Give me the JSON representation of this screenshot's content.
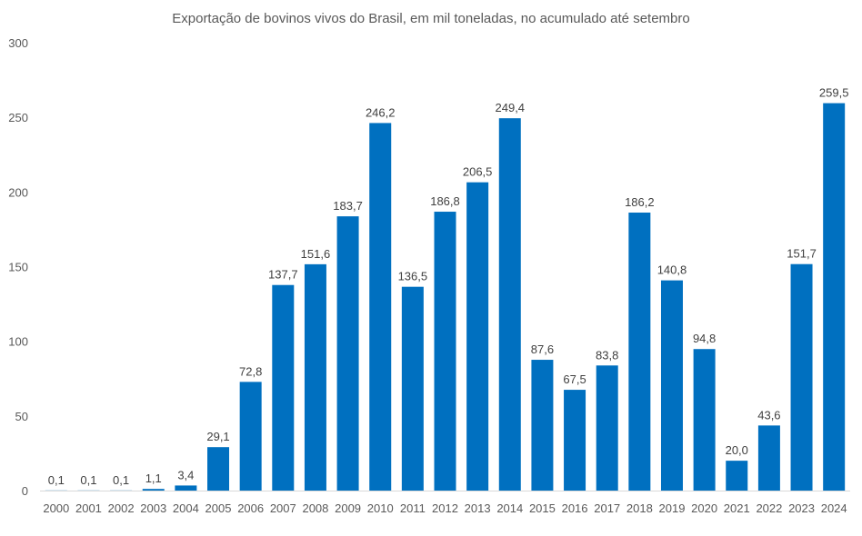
{
  "chart_data": {
    "type": "bar",
    "title": "Exportação de bovinos vivos do Brasil, em mil toneladas, no acumulado até setembro",
    "xlabel": "",
    "ylabel": "",
    "ylim": [
      0,
      300
    ],
    "yticks": [
      0,
      50,
      100,
      150,
      200,
      250,
      300
    ],
    "grid": false,
    "bar_color": "#0070C0",
    "categories": [
      "2000",
      "2001",
      "2002",
      "2003",
      "2004",
      "2005",
      "2006",
      "2007",
      "2008",
      "2009",
      "2010",
      "2011",
      "2012",
      "2013",
      "2014",
      "2015",
      "2016",
      "2017",
      "2018",
      "2019",
      "2020",
      "2021",
      "2022",
      "2023",
      "2024"
    ],
    "values": [
      0.1,
      0.1,
      0.1,
      1.1,
      3.4,
      29.1,
      72.8,
      137.7,
      151.6,
      183.7,
      246.2,
      136.5,
      186.8,
      206.5,
      249.4,
      87.6,
      67.5,
      83.8,
      186.2,
      140.8,
      94.8,
      20.0,
      43.6,
      151.7,
      259.5
    ],
    "data_labels": [
      "0,1",
      "0,1",
      "0,1",
      "1,1",
      "3,4",
      "29,1",
      "72,8",
      "137,7",
      "151,6",
      "183,7",
      "246,2",
      "136,5",
      "186,8",
      "206,5",
      "249,4",
      "87,6",
      "67,5",
      "83,8",
      "186,2",
      "140,8",
      "94,8",
      "20,0",
      "43,6",
      "151,7",
      "259,5"
    ]
  }
}
